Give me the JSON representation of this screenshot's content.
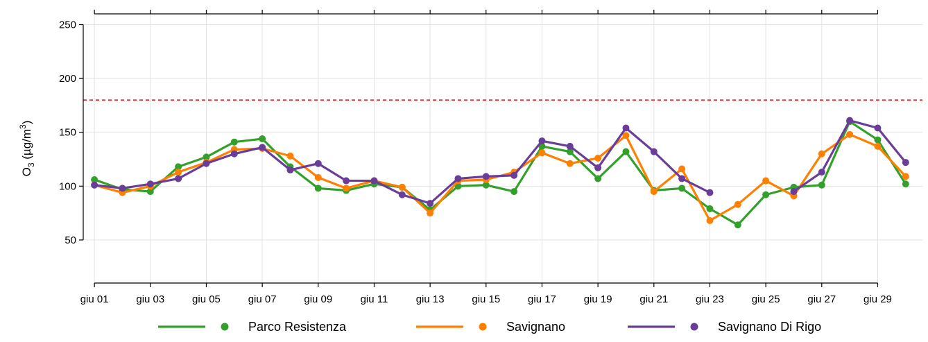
{
  "chart_data": {
    "type": "line",
    "ylabel": {
      "base": "O",
      "sub": "3",
      "unit_pre": " (µg/m",
      "sup": "3",
      "unit_post": ")"
    },
    "x_tick_labels": [
      "giu 01",
      "giu 03",
      "giu 05",
      "giu 07",
      "giu 09",
      "giu 11",
      "giu 13",
      "giu 15",
      "giu 17",
      "giu 19",
      "giu 21",
      "giu 23",
      "giu 25",
      "giu 27",
      "giu 29"
    ],
    "x_tick_days": [
      1,
      3,
      5,
      7,
      9,
      11,
      13,
      15,
      17,
      19,
      21,
      23,
      25,
      27,
      29
    ],
    "xlim": [
      0.6,
      30.6
    ],
    "ylim": [
      10,
      260
    ],
    "y_ticks": [
      50,
      100,
      150,
      200,
      250
    ],
    "grid": true,
    "threshold": {
      "value": 180,
      "color": "#e41a1c",
      "style": "dashed"
    },
    "legend_position": "bottom",
    "days": [
      1,
      2,
      3,
      4,
      5,
      6,
      7,
      8,
      9,
      10,
      11,
      12,
      13,
      14,
      15,
      16,
      17,
      18,
      19,
      20,
      21,
      22,
      23,
      24,
      25,
      26,
      27,
      28,
      29,
      30
    ],
    "series": [
      {
        "name": "Parco Resistenza",
        "color": "#33a02c",
        "values": [
          106,
          97,
          95,
          118,
          127,
          141,
          144,
          118,
          98,
          96,
          102,
          99,
          78,
          100,
          101,
          95,
          137,
          132,
          107,
          132,
          96,
          98,
          79,
          64,
          92,
          99,
          101,
          160,
          143,
          102
        ]
      },
      {
        "name": "Savignano",
        "color": "#ff7f00",
        "values": [
          101,
          94,
          100,
          113,
          122,
          134,
          135,
          128,
          108,
          98,
          105,
          99,
          75,
          105,
          106,
          113,
          131,
          121,
          126,
          147,
          95,
          116,
          68,
          83,
          105,
          91,
          130,
          148,
          137,
          109
        ]
      },
      {
        "name": "Savignano Di Rigo",
        "color": "#6a3d9a",
        "values": [
          101,
          98,
          102,
          107,
          121,
          130,
          136,
          115,
          121,
          105,
          105,
          92,
          84,
          107,
          109,
          110,
          142,
          137,
          117,
          154,
          132,
          107,
          94,
          null,
          null,
          95,
          113,
          161,
          154,
          122
        ]
      }
    ]
  }
}
